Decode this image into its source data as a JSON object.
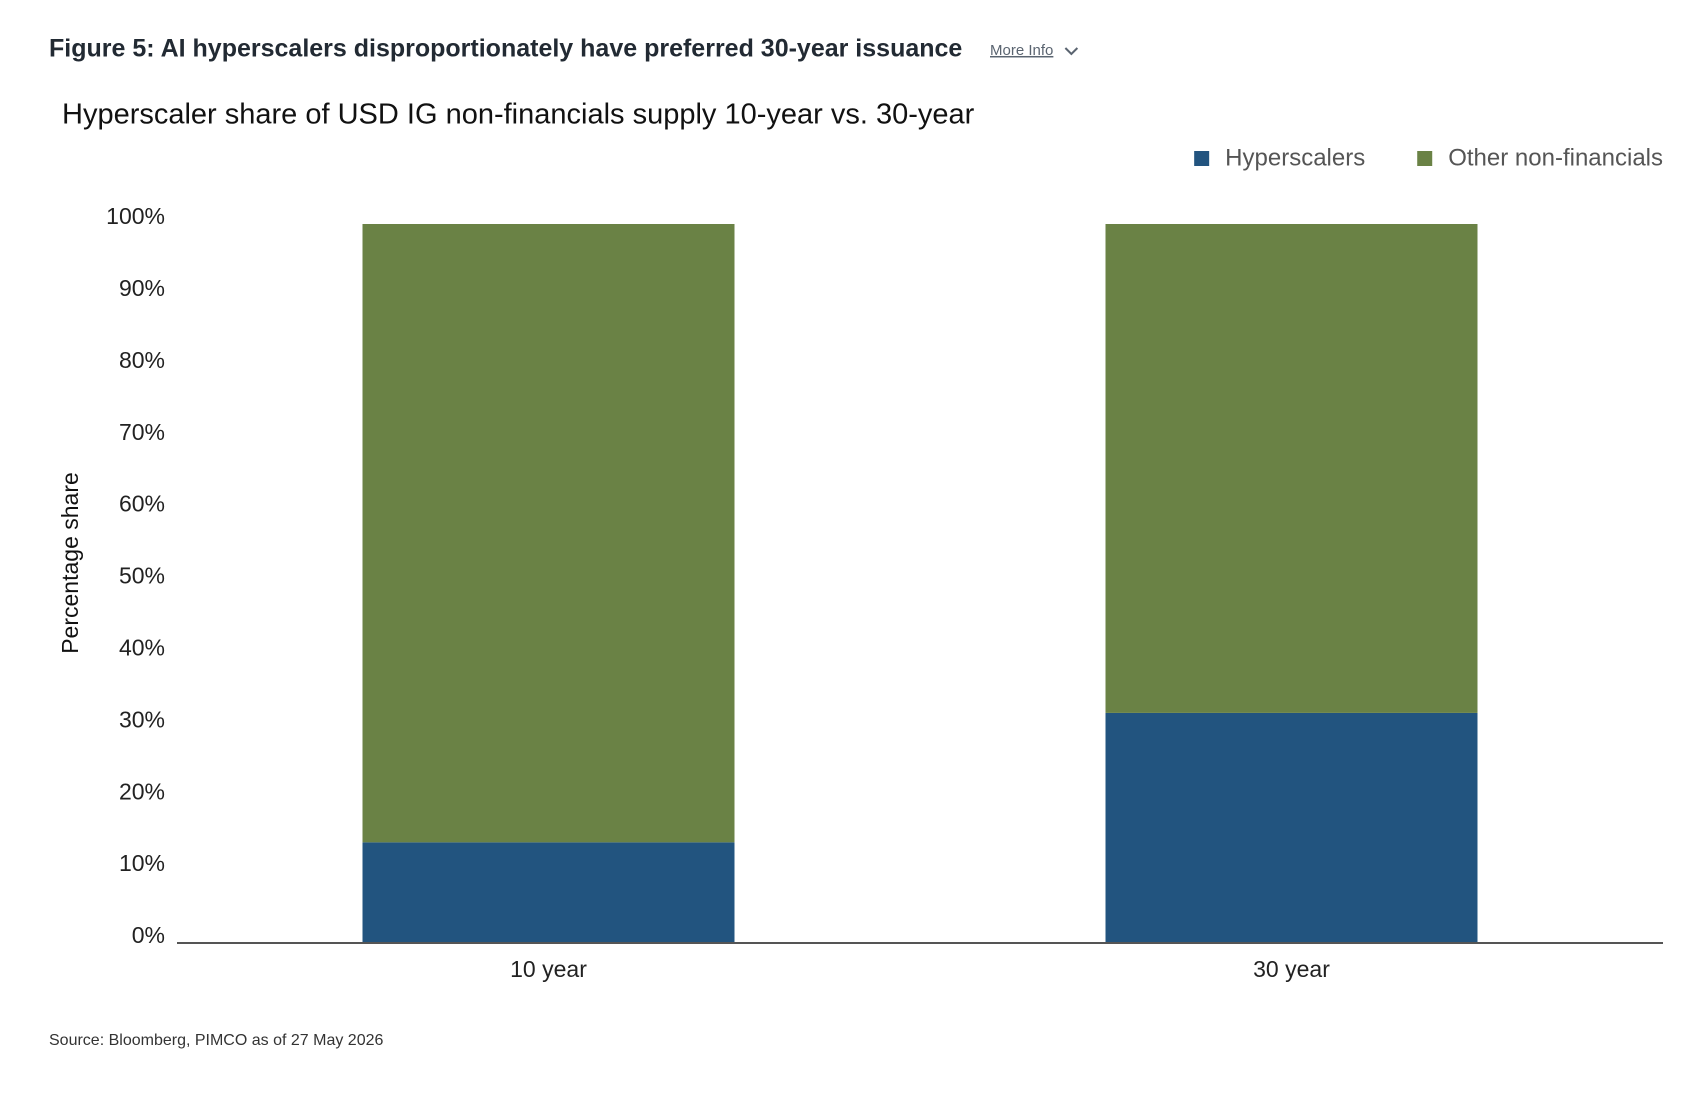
{
  "header": {
    "figure_title": "Figure 5: AI hyperscalers disproportionately have preferred 30-year issuance",
    "more_info": "More Info"
  },
  "chart_data": {
    "type": "stacked_bar",
    "title": "Hyperscaler share of USD IG non-financials supply 10-year vs. 30-year",
    "y_label": "Percentage share",
    "categories": [
      "10 year",
      "30 year"
    ],
    "series": [
      {
        "name": "Hyperscalers",
        "color": "#22547f",
        "values": [
          14,
          32
        ]
      },
      {
        "name": "Other non-financials",
        "color": "#6a8245",
        "values": [
          86,
          68
        ]
      }
    ],
    "ylim": [
      0,
      100
    ],
    "yticks": [
      {
        "value": 0,
        "label": "0%"
      },
      {
        "value": 10,
        "label": "10%"
      },
      {
        "value": 20,
        "label": "20%"
      },
      {
        "value": 30,
        "label": "30%"
      },
      {
        "value": 40,
        "label": "40%"
      },
      {
        "value": 50,
        "label": "50%"
      },
      {
        "value": 60,
        "label": "60%"
      },
      {
        "value": 70,
        "label": "70%"
      },
      {
        "value": 80,
        "label": "80%"
      },
      {
        "value": 90,
        "label": "90%"
      },
      {
        "value": 100,
        "label": "100%"
      }
    ],
    "grid": false,
    "legend": "upper right"
  },
  "source": "Source: Bloomberg, PIMCO as of 27 May 2026"
}
